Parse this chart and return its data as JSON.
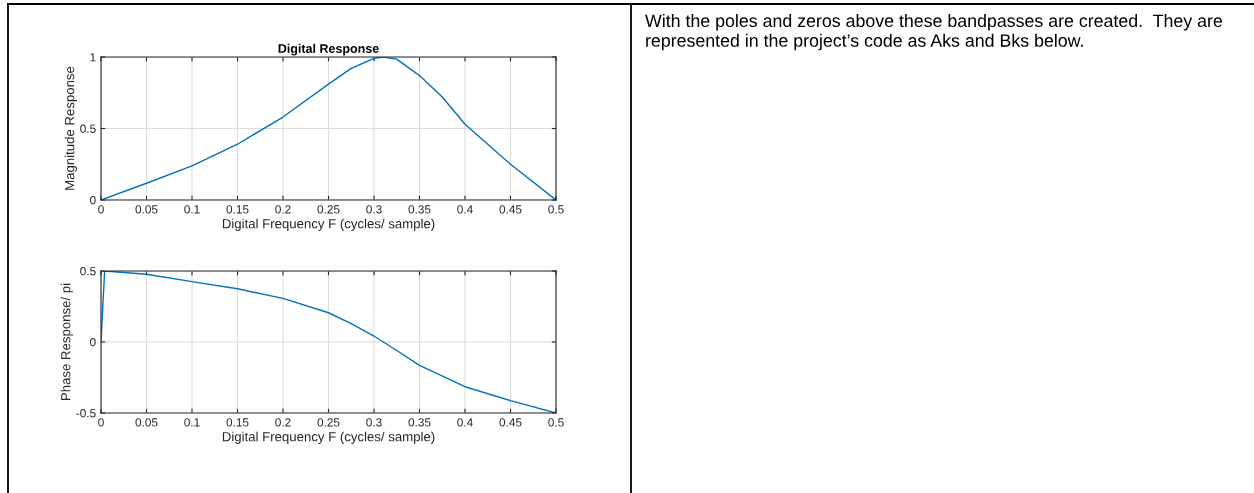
{
  "chart_data": [
    {
      "type": "line",
      "title": "Digital Response",
      "xlabel": "Digital Frequency F (cycles/ sample)",
      "ylabel": "Magnitude Response",
      "x": [
        0,
        0.05,
        0.1,
        0.15,
        0.2,
        0.25,
        0.275,
        0.3,
        0.31,
        0.325,
        0.35,
        0.375,
        0.4,
        0.45,
        0.5
      ],
      "series": [
        {
          "color": "#0072bd",
          "values": [
            0,
            0.117,
            0.238,
            0.39,
            0.58,
            0.81,
            0.92,
            0.99,
            1.0,
            0.985,
            0.87,
            0.72,
            0.53,
            0.25,
            0
          ]
        }
      ],
      "xlim": [
        0,
        0.5
      ],
      "xticks": [
        0,
        0.05,
        0.1,
        0.15,
        0.2,
        0.25,
        0.3,
        0.35,
        0.4,
        0.45,
        0.5
      ],
      "ylim": [
        0,
        1
      ],
      "yticks": [
        0,
        0.5,
        1
      ],
      "grid": true
    },
    {
      "type": "line",
      "xlabel": "Digital Frequency F (cycles/ sample)",
      "ylabel": "Phase Response/ pi",
      "x": [
        0,
        0.004,
        0.05,
        0.1,
        0.15,
        0.2,
        0.25,
        0.275,
        0.3,
        0.325,
        0.35,
        0.4,
        0.45,
        0.5
      ],
      "series": [
        {
          "color": "#0072bd",
          "values": [
            0,
            0.5,
            0.477,
            0.425,
            0.375,
            0.307,
            0.206,
            0.13,
            0.042,
            -0.06,
            -0.165,
            -0.315,
            -0.413,
            -0.5
          ]
        }
      ],
      "xlim": [
        0,
        0.5
      ],
      "xticks": [
        0,
        0.05,
        0.1,
        0.15,
        0.2,
        0.25,
        0.3,
        0.35,
        0.4,
        0.45,
        0.5
      ],
      "ylim": [
        -0.5,
        0.5
      ],
      "yticks": [
        -0.5,
        0,
        0.5
      ],
      "grid": true
    },
    {
      "type": "other",
      "annotations": [
        "With the poles and zeros above these bandpasses are created.  They are represented in the project’s code as Aks and Bks below."
      ]
    }
  ]
}
